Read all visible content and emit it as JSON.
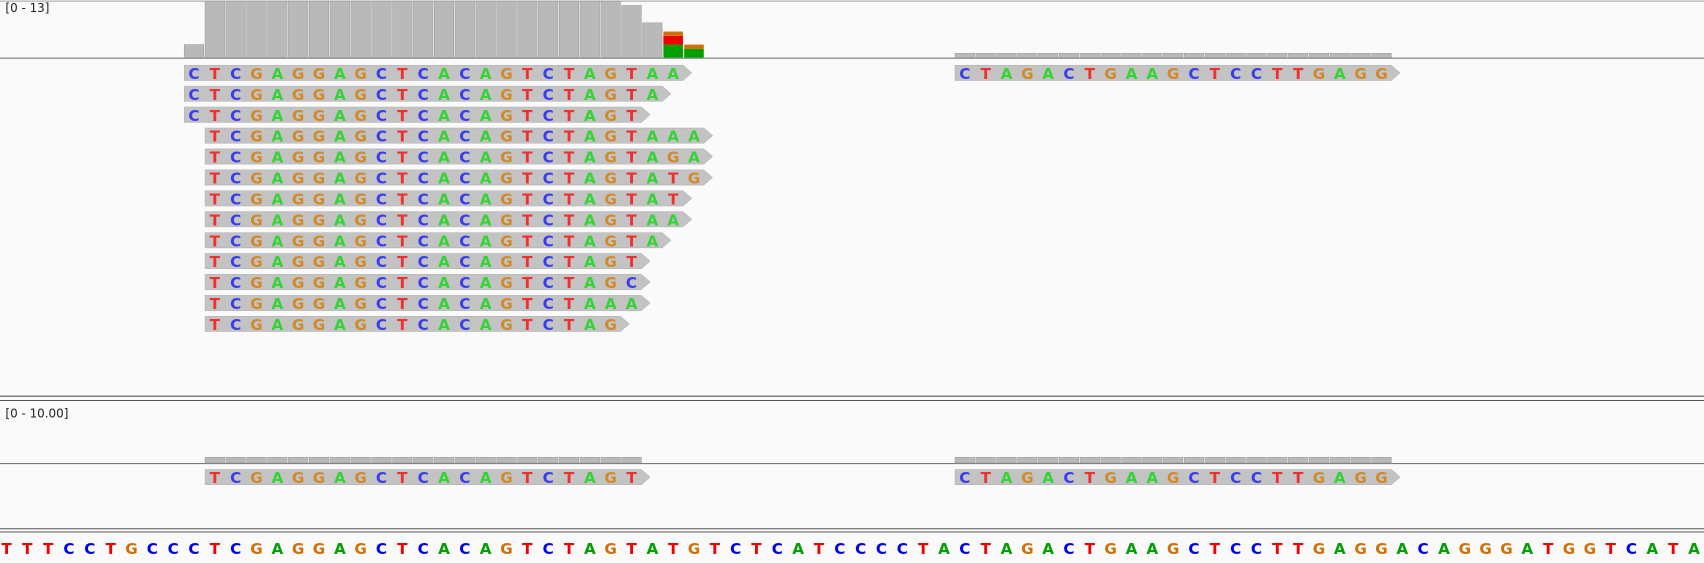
{
  "tracks": [
    {
      "range": "[0 - 13]",
      "ylim": [
        0,
        13
      ],
      "coverage": [
        {
          "start": 9,
          "values": [
            3,
            13,
            13,
            13,
            13,
            13,
            13,
            13,
            13,
            13,
            13,
            13,
            13,
            13,
            13,
            13,
            13,
            13,
            13,
            13,
            13,
            12,
            8,
            {
              "A": 3,
              "T": 2,
              "G": 1
            },
            {
              "A": 2,
              "G": 1
            }
          ]
        },
        {
          "start": 46,
          "values": [
            1,
            1,
            1,
            1,
            1,
            1,
            1,
            1,
            1,
            1,
            1,
            1,
            1,
            1,
            1,
            1,
            1,
            1,
            1,
            1,
            1
          ]
        }
      ],
      "reads": [
        [
          {
            "start": 9,
            "sequence": "CTCGAGGAGCTCACAGTCTAGTAA"
          },
          {
            "start": 46,
            "sequence": "CTAGACTGAAGCTCCTTGAGG"
          }
        ],
        [
          {
            "start": 9,
            "sequence": "CTCGAGGAGCTCACAGTCTAGTA"
          }
        ],
        [
          {
            "start": 9,
            "sequence": "CTCGAGGAGCTCACAGTCTAGT"
          }
        ],
        [
          {
            "start": 10,
            "sequence": "TCGAGGAGCTCACAGTCTAGTAAA"
          }
        ],
        [
          {
            "start": 10,
            "sequence": "TCGAGGAGCTCACAGTCTAGTAGA"
          }
        ],
        [
          {
            "start": 10,
            "sequence": "TCGAGGAGCTCACAGTCTAGTATG"
          }
        ],
        [
          {
            "start": 10,
            "sequence": "TCGAGGAGCTCACAGTCTAGTAT"
          }
        ],
        [
          {
            "start": 10,
            "sequence": "TCGAGGAGCTCACAGTCTAGTAA"
          }
        ],
        [
          {
            "start": 10,
            "sequence": "TCGAGGAGCTCACAGTCTAGTA"
          }
        ],
        [
          {
            "start": 10,
            "sequence": "TCGAGGAGCTCACAGTCTAGT"
          }
        ],
        [
          {
            "start": 10,
            "sequence": "TCGAGGAGCTCACAGTCTAGC"
          }
        ],
        [
          {
            "start": 10,
            "sequence": "TCGAGGAGCTCACAGTCTAAA"
          }
        ],
        [
          {
            "start": 10,
            "sequence": "TCGAGGAGCTCACAGTCTAG"
          }
        ]
      ]
    },
    {
      "range": "[0 - 10.00]",
      "ylim": [
        0,
        10
      ],
      "coverage": [
        {
          "start": 10,
          "values": [
            1,
            1,
            1,
            1,
            1,
            1,
            1,
            1,
            1,
            1,
            1,
            1,
            1,
            1,
            1,
            1,
            1,
            1,
            1,
            1,
            1
          ]
        },
        {
          "start": 46,
          "values": [
            1,
            1,
            1,
            1,
            1,
            1,
            1,
            1,
            1,
            1,
            1,
            1,
            1,
            1,
            1,
            1,
            1,
            1,
            1,
            1,
            1
          ]
        }
      ],
      "reads": [
        [
          {
            "start": 10,
            "sequence": "TCGAGGAGCTCACAGTCTAGT"
          },
          {
            "start": 46,
            "sequence": "CTAGACTGAAGCTCCTTGAGG"
          }
        ]
      ]
    }
  ],
  "reference": {
    "start": 0,
    "sequence": "TTTCCTGCCCTCGAGGAGCTCACAGTCTAGTATGTCTCATCCCCTACTAGACTGAAGCTCCTTGAGGACAGGGATGGTCATA"
  }
}
